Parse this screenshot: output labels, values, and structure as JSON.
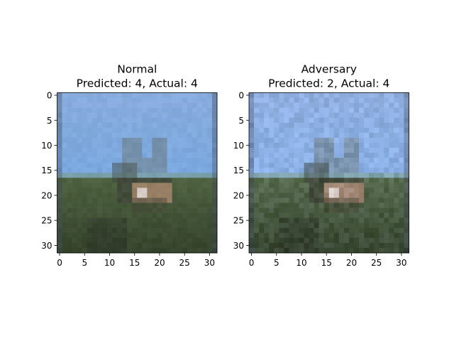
{
  "chart_data": [
    {
      "type": "heatmap",
      "title_line1": "Normal",
      "title_line2": "Predicted: 4, Actual: 4",
      "x_ticks": [
        0,
        5,
        10,
        15,
        20,
        25,
        30
      ],
      "y_ticks": [
        0,
        5,
        10,
        15,
        20,
        25,
        30
      ],
      "xlim": [
        -0.5,
        31.5
      ],
      "ylim": [
        31.5,
        -0.5
      ],
      "image_size": [
        32,
        32
      ],
      "content": "low-resolution photo: blue sky above a green grassy field with a deer-like animal in the center",
      "colors": {
        "sky": "#7aa8de",
        "field": "#4e6140",
        "animal": "#b08a72"
      }
    },
    {
      "type": "heatmap",
      "title_line1": "Adversary",
      "title_line2": "Predicted: 2, Actual: 4",
      "x_ticks": [
        0,
        5,
        10,
        15,
        20,
        25,
        30
      ],
      "y_ticks": [
        0,
        5,
        10,
        15,
        20,
        25,
        30
      ],
      "xlim": [
        -0.5,
        31.5
      ],
      "ylim": [
        31.5,
        -0.5
      ],
      "image_size": [
        32,
        32
      ],
      "content": "same photo with slight adversarial noise added (slightly lighter, bluish tint)",
      "colors": {
        "sky": "#8ab0e6",
        "field": "#566a4e",
        "animal": "#b89080"
      }
    }
  ]
}
